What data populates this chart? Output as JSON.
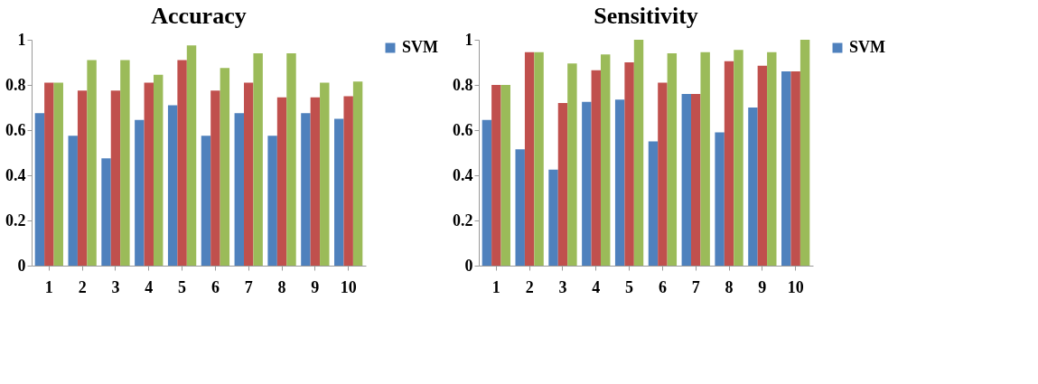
{
  "chart_data": [
    {
      "type": "bar",
      "title": "Accuracy",
      "categories": [
        "1",
        "2",
        "3",
        "4",
        "5",
        "6",
        "7",
        "8",
        "9",
        "10"
      ],
      "ylim": [
        0,
        1
      ],
      "yticks": [
        0,
        0.2,
        0.4,
        0.6,
        0.8,
        1
      ],
      "grid": false,
      "legend": "right",
      "series": [
        {
          "name": "SVM",
          "color": "#4f81bd",
          "values": [
            0.675,
            0.575,
            0.475,
            0.645,
            0.71,
            0.575,
            0.675,
            0.575,
            0.675,
            0.65
          ]
        },
        {
          "color": "#c0504d",
          "values": [
            0.81,
            0.775,
            0.775,
            0.81,
            0.91,
            0.775,
            0.81,
            0.745,
            0.745,
            0.75
          ]
        },
        {
          "color": "#9bbb59",
          "values": [
            0.81,
            0.91,
            0.91,
            0.845,
            0.975,
            0.875,
            0.94,
            0.94,
            0.81,
            0.815
          ]
        }
      ]
    },
    {
      "type": "bar",
      "title": "Sensitivity",
      "categories": [
        "1",
        "2",
        "3",
        "4",
        "5",
        "6",
        "7",
        "8",
        "9",
        "10"
      ],
      "ylim": [
        0,
        1
      ],
      "yticks": [
        0,
        0.2,
        0.4,
        0.6,
        0.8,
        1
      ],
      "grid": false,
      "legend": "right",
      "series": [
        {
          "name": "SVM",
          "color": "#4f81bd",
          "values": [
            0.645,
            0.515,
            0.425,
            0.725,
            0.735,
            0.55,
            0.76,
            0.59,
            0.7,
            0.86
          ]
        },
        {
          "color": "#c0504d",
          "values": [
            0.8,
            0.945,
            0.72,
            0.865,
            0.9,
            0.81,
            0.76,
            0.905,
            0.885,
            0.86
          ]
        },
        {
          "color": "#9bbb59",
          "values": [
            0.8,
            0.945,
            0.895,
            0.935,
            1.0,
            0.94,
            0.945,
            0.955,
            0.945,
            1.0
          ]
        }
      ]
    }
  ]
}
